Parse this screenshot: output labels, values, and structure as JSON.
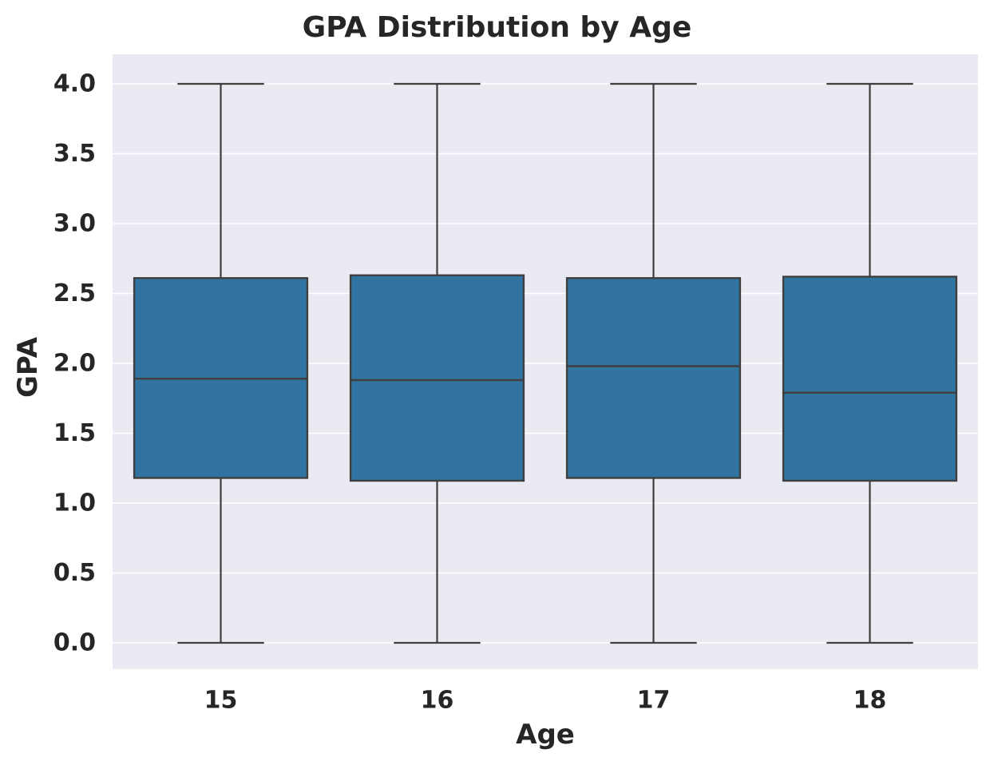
{
  "chart_data": {
    "type": "box",
    "title": "GPA Distribution by Age",
    "xlabel": "Age",
    "ylabel": "GPA",
    "categories": [
      "15",
      "16",
      "17",
      "18"
    ],
    "ylim": [
      0,
      4
    ],
    "yticks": [
      "0.0",
      "0.5",
      "1.0",
      "1.5",
      "2.0",
      "2.5",
      "3.0",
      "3.5",
      "4.0"
    ],
    "grid": true,
    "boxes": [
      {
        "category": "15",
        "min": 0.0,
        "q1": 1.18,
        "median": 1.89,
        "q3": 2.61,
        "max": 4.0
      },
      {
        "category": "16",
        "min": 0.0,
        "q1": 1.16,
        "median": 1.88,
        "q3": 2.63,
        "max": 4.0
      },
      {
        "category": "17",
        "min": 0.0,
        "q1": 1.18,
        "median": 1.98,
        "q3": 2.61,
        "max": 4.0
      },
      {
        "category": "18",
        "min": 0.0,
        "q1": 1.16,
        "median": 1.79,
        "q3": 2.62,
        "max": 4.0
      }
    ],
    "colors": {
      "box_fill": "#3274a1",
      "box_edge": "#3f3f3f",
      "plot_background": "#eaeaf2",
      "grid": "#ffffff"
    }
  }
}
